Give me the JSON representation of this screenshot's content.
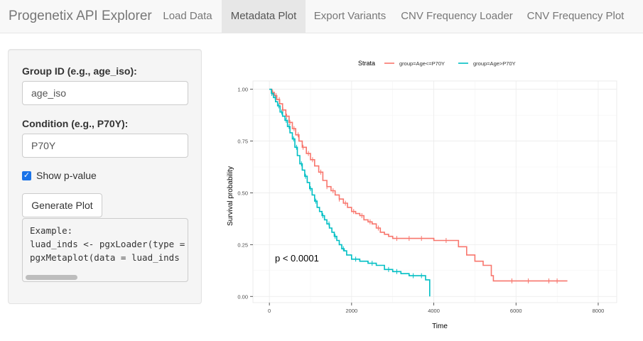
{
  "navbar": {
    "brand": "Progenetix API Explorer",
    "tabs": [
      {
        "label": "Load Data",
        "active": false
      },
      {
        "label": "Metadata Plot",
        "active": true
      },
      {
        "label": "Export Variants",
        "active": false
      },
      {
        "label": "CNV Frequency Loader",
        "active": false
      },
      {
        "label": "CNV Frequency Plot",
        "active": false
      }
    ]
  },
  "sidebar": {
    "group_label": "Group ID (e.g., age_iso):",
    "group_value": "age_iso",
    "condition_label": "Condition (e.g., P70Y):",
    "condition_value": "P70Y",
    "pvalue_label": "Show p-value",
    "pvalue_checked": true,
    "generate_label": "Generate Plot",
    "code_lines": [
      "Example:",
      "luad_inds <- pgxLoader(type = ",
      "pgxMetaplot(data = luad_inds"
    ]
  },
  "colors": {
    "accent": "#1a73e8",
    "strata1": "#F8766D",
    "strata2": "#00BFC4"
  },
  "chart_data": {
    "type": "line",
    "title": "",
    "legend_title": "Strata",
    "legend_position": "top",
    "xlabel": "Time",
    "ylabel": "Survival probability",
    "xlim": [
      -400,
      8450
    ],
    "ylim": [
      -0.03,
      1.04
    ],
    "xticks": [
      0,
      2000,
      4000,
      6000,
      8000
    ],
    "xtick_labels": [
      "0",
      "2000",
      "4000",
      "6000",
      "8000"
    ],
    "yticks": [
      0,
      0.25,
      0.5,
      0.75,
      1.0
    ],
    "ytick_labels": [
      "0.00",
      "0.25",
      "0.50",
      "0.75",
      "1.00"
    ],
    "annotation": "p < 0.0001",
    "series": [
      {
        "name": "group=Age<=P70Y",
        "color": "#F8766D",
        "x": [
          0,
          60,
          120,
          180,
          250,
          320,
          400,
          480,
          560,
          640,
          720,
          800,
          900,
          1000,
          1100,
          1200,
          1300,
          1400,
          1500,
          1600,
          1700,
          1800,
          1900,
          2000,
          2100,
          2200,
          2300,
          2400,
          2500,
          2600,
          2700,
          2800,
          2900,
          3000,
          3300,
          3600,
          3900,
          4000,
          4200,
          4400,
          4600,
          4800,
          5000,
          5200,
          5400,
          5450,
          7250
        ],
        "y": [
          1.0,
          0.985,
          0.97,
          0.95,
          0.93,
          0.9,
          0.87,
          0.84,
          0.81,
          0.78,
          0.75,
          0.72,
          0.69,
          0.66,
          0.63,
          0.6,
          0.56,
          0.53,
          0.51,
          0.49,
          0.47,
          0.45,
          0.43,
          0.41,
          0.4,
          0.39,
          0.37,
          0.36,
          0.35,
          0.33,
          0.31,
          0.3,
          0.29,
          0.28,
          0.28,
          0.28,
          0.28,
          0.27,
          0.27,
          0.27,
          0.24,
          0.2,
          0.17,
          0.15,
          0.1,
          0.075,
          0.075
        ],
        "censor_x": [
          80,
          160,
          240,
          330,
          420,
          500,
          600,
          700,
          820,
          950,
          1050,
          1250,
          1400,
          1550,
          1700,
          1850,
          2050,
          2250,
          2450,
          2650,
          3100,
          3400,
          3700,
          4300,
          5900,
          6300,
          6800,
          7000
        ]
      },
      {
        "name": "group=Age>P70Y",
        "color": "#00BFC4",
        "x": [
          0,
          50,
          100,
          150,
          200,
          260,
          320,
          380,
          440,
          500,
          560,
          620,
          680,
          740,
          800,
          860,
          920,
          980,
          1040,
          1100,
          1160,
          1220,
          1280,
          1340,
          1400,
          1460,
          1520,
          1580,
          1640,
          1700,
          1760,
          1820,
          1880,
          2000,
          2200,
          2400,
          2600,
          2800,
          3000,
          3200,
          3400,
          3600,
          3800,
          3900
        ],
        "y": [
          1.0,
          0.98,
          0.96,
          0.94,
          0.92,
          0.89,
          0.87,
          0.85,
          0.82,
          0.79,
          0.76,
          0.72,
          0.68,
          0.64,
          0.61,
          0.58,
          0.55,
          0.52,
          0.49,
          0.46,
          0.43,
          0.41,
          0.39,
          0.37,
          0.35,
          0.33,
          0.31,
          0.29,
          0.27,
          0.25,
          0.23,
          0.22,
          0.2,
          0.18,
          0.17,
          0.16,
          0.15,
          0.13,
          0.12,
          0.11,
          0.1,
          0.1,
          0.08,
          0.0
        ],
        "censor_x": [
          60,
          140,
          230,
          300,
          410,
          480,
          590,
          660,
          780,
          880,
          1000,
          1130,
          1300,
          1450,
          1600,
          1800,
          2100,
          2500,
          2900,
          3100,
          3500,
          3700
        ]
      }
    ]
  }
}
